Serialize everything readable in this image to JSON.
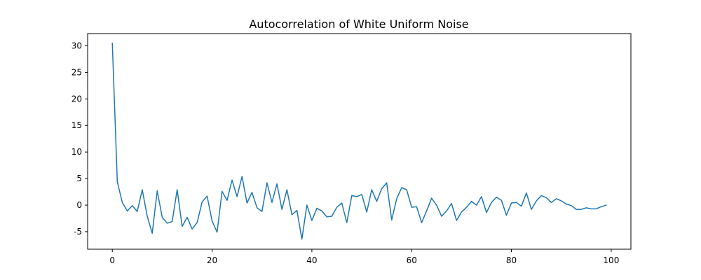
{
  "chart_data": {
    "type": "line",
    "title": "Autocorrelation of White Uniform Noise",
    "xlabel": "",
    "ylabel": "",
    "xlim": [
      -4.95,
      103.95
    ],
    "ylim": [
      -8.3,
      32.3
    ],
    "xticks": [
      0,
      20,
      40,
      60,
      80,
      100
    ],
    "yticks": [
      -5,
      0,
      5,
      10,
      15,
      20,
      25,
      30
    ],
    "grid": false,
    "color": "#1f77b4",
    "series": [
      {
        "x": [
          0,
          1,
          2,
          3,
          4,
          5,
          6,
          7,
          8,
          9,
          10,
          11,
          12,
          13,
          14,
          15,
          16,
          17,
          18,
          19,
          20,
          21,
          22,
          23,
          24,
          25,
          26,
          27,
          28,
          29,
          30,
          31,
          32,
          33,
          34,
          35,
          36,
          37,
          38,
          39,
          40,
          41,
          42,
          43,
          44,
          45,
          46,
          47,
          48,
          49,
          50,
          51,
          52,
          53,
          54,
          55,
          56,
          57,
          58,
          59,
          60,
          61,
          62,
          63,
          64,
          65,
          66,
          67,
          68,
          69,
          70,
          71,
          72,
          73,
          74,
          75,
          76,
          77,
          78,
          79,
          80,
          81,
          82,
          83,
          84,
          85,
          86,
          87,
          88,
          89,
          90,
          91,
          92,
          93,
          94,
          95,
          96,
          97,
          98,
          99
        ],
        "values": [
          30.5,
          4.4,
          0.5,
          -1.1,
          -0.1,
          -1.2,
          2.9,
          -2.1,
          -5.3,
          2.7,
          -2.3,
          -3.4,
          -3.1,
          2.9,
          -4.0,
          -2.3,
          -4.5,
          -3.3,
          0.6,
          1.7,
          -3.0,
          -5.1,
          2.6,
          0.9,
          4.7,
          1.6,
          5.4,
          0.4,
          2.4,
          -0.5,
          -1.2,
          4.2,
          0.5,
          4.0,
          -0.8,
          2.9,
          -1.8,
          -1.0,
          -6.4,
          0.0,
          -2.9,
          -0.6,
          -1.1,
          -2.2,
          -2.1,
          -0.4,
          0.4,
          -3.3,
          1.8,
          1.6,
          2.0,
          -1.3,
          2.9,
          0.7,
          3.1,
          4.2,
          -2.8,
          1.2,
          3.3,
          2.9,
          -0.4,
          -0.3,
          -3.3,
          -1.1,
          1.3,
          0.0,
          -2.1,
          -1.1,
          0.3,
          -2.9,
          -1.3,
          -0.4,
          0.7,
          0.0,
          1.6,
          -1.4,
          0.5,
          1.5,
          0.9,
          -1.9,
          0.4,
          0.5,
          -0.2,
          2.3,
          -0.8,
          0.8,
          1.8,
          1.4,
          0.5,
          1.2,
          0.8,
          0.2,
          -0.1,
          -0.8,
          -0.8,
          -0.5,
          -0.7,
          -0.7,
          -0.3,
          0.0
        ]
      }
    ]
  }
}
